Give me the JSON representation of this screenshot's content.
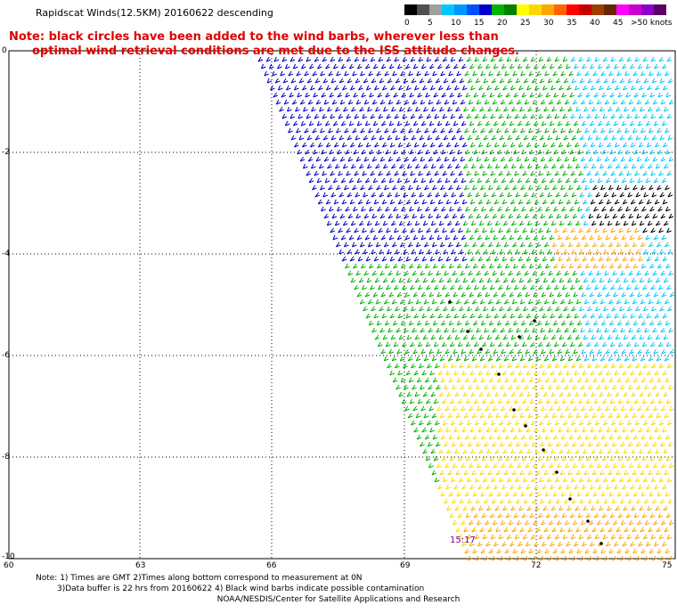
{
  "title": "Rapidscat Winds(12.5KM) 20160622 descending",
  "note_line1": "Note: black circles have been added to the wind barbs, wherever less than",
  "note_line2": "optimal wind retrieval conditions are met due to the ISS attitude changes.",
  "scale": {
    "colors": [
      "#000000",
      "#505050",
      "#a0a0a0",
      "#00c8ff",
      "#0096ff",
      "#0050ff",
      "#0000c8",
      "#00b400",
      "#008000",
      "#ffff00",
      "#ffd700",
      "#ffa500",
      "#ff6400",
      "#ff0000",
      "#c80000",
      "#a03c00",
      "#642800",
      "#ff00ff",
      "#c800c8",
      "#8c00c8",
      "#5a0064"
    ],
    "labels": [
      "0",
      "5",
      "10",
      "15",
      "20",
      "25",
      "30",
      "35",
      "40",
      "45",
      ">50 knots"
    ]
  },
  "y_ticks": [
    "0",
    "-2",
    "-4",
    "-6",
    "-8",
    "-10"
  ],
  "x_ticks": [
    "60",
    "63",
    "66",
    "69",
    "72",
    "75"
  ],
  "time_label": "15:17",
  "footnote_line1": "Note: 1) Times are GMT 2)Times along bottom correspond to measurement at 0N",
  "footnote_line2": "3)Data buffer is 22 hrs from 20160622 4) Black wind barbs indicate possible contamination",
  "credit": "NOAA/NESDIS/Center for Satellite Applications and Research"
}
